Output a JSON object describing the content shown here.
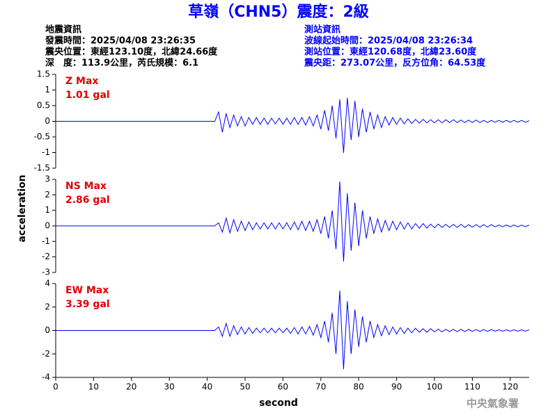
{
  "title": "草嶺（CHN5）震度：2級",
  "info_left": [
    "地震資訊",
    "發震時間：2025/04/08 23:26:35",
    "震央位置：東經123.10度，北緯24.66度",
    "深　度：113.9公里，芮氏規模：6.1"
  ],
  "info_right": [
    "測站資訊",
    "波線起始時間：2025/04/08 23:26:34",
    "測站位置：東經120.68度，北緯23.60度",
    "震央距：273.07公里，反方位角：64.53度"
  ],
  "ylabel": "acceleration",
  "xlabel": "second",
  "footer": "中央氣象署",
  "chart_data": [
    {
      "type": "line",
      "annotations": [
        "Z Max",
        "1.01 gal"
      ],
      "xlim": [
        0,
        125
      ],
      "ylim": [
        -1.5,
        1.5
      ],
      "yticks": [
        -1.5,
        -1,
        -0.5,
        0,
        0.5,
        1,
        1.5
      ],
      "x": [
        0,
        42,
        43,
        44,
        45,
        46,
        47,
        48,
        49,
        50,
        51,
        52,
        53,
        54,
        55,
        56,
        57,
        58,
        59,
        60,
        61,
        62,
        63,
        64,
        65,
        66,
        67,
        68,
        69,
        70,
        71,
        72,
        73,
        74,
        75,
        76,
        77,
        78,
        79,
        80,
        81,
        82,
        83,
        84,
        85,
        86,
        87,
        88,
        89,
        90,
        91,
        92,
        93,
        94,
        95,
        96,
        97,
        98,
        99,
        100,
        101,
        102,
        103,
        104,
        105,
        106,
        107,
        108,
        109,
        110,
        111,
        112,
        113,
        114,
        115,
        116,
        117,
        118,
        119,
        120,
        121,
        122,
        123,
        124,
        125
      ],
      "series": [
        {
          "color": "#0000ff",
          "values": [
            0,
            0,
            0.3,
            -0.35,
            0.25,
            -0.2,
            0.2,
            -0.15,
            0.15,
            -0.15,
            0.12,
            -0.1,
            0.12,
            -0.1,
            0.1,
            -0.1,
            0.1,
            -0.08,
            0.1,
            -0.1,
            0.1,
            -0.1,
            0.12,
            -0.1,
            0.12,
            -0.12,
            0.15,
            -0.15,
            0.2,
            -0.25,
            0.35,
            -0.3,
            0.5,
            -0.55,
            0.7,
            -1.01,
            0.75,
            -0.6,
            0.65,
            -0.5,
            0.4,
            -0.35,
            0.3,
            -0.25,
            0.2,
            -0.2,
            0.15,
            -0.12,
            0.12,
            -0.1,
            0.1,
            -0.08,
            0.08,
            -0.07,
            0.06,
            -0.06,
            0.06,
            -0.05,
            0.05,
            -0.05,
            0.05,
            -0.05,
            0.05,
            -0.04,
            0.05,
            -0.04,
            0.04,
            -0.04,
            0.04,
            -0.04,
            0.04,
            -0.04,
            0.03,
            -0.04,
            0.03,
            -0.03,
            0.03,
            -0.03,
            0.03,
            -0.03,
            0.03,
            -0.03,
            0.03,
            -0.03,
            0.02
          ]
        }
      ]
    },
    {
      "type": "line",
      "annotations": [
        "NS Max",
        "2.86 gal"
      ],
      "xlim": [
        0,
        125
      ],
      "ylim": [
        -3,
        3
      ],
      "yticks": [
        -3,
        -2,
        -1,
        0,
        1,
        2,
        3
      ],
      "x": [
        0,
        42,
        43,
        44,
        45,
        46,
        47,
        48,
        49,
        50,
        51,
        52,
        53,
        54,
        55,
        56,
        57,
        58,
        59,
        60,
        61,
        62,
        63,
        64,
        65,
        66,
        67,
        68,
        69,
        70,
        71,
        72,
        73,
        74,
        75,
        76,
        77,
        78,
        79,
        80,
        81,
        82,
        83,
        84,
        85,
        86,
        87,
        88,
        89,
        90,
        91,
        92,
        93,
        94,
        95,
        96,
        97,
        98,
        99,
        100,
        101,
        102,
        103,
        104,
        105,
        106,
        107,
        108,
        109,
        110,
        111,
        112,
        113,
        114,
        115,
        116,
        117,
        118,
        119,
        120,
        121,
        122,
        123,
        124,
        125
      ],
      "series": [
        {
          "color": "#0000ff",
          "values": [
            0,
            0,
            0.2,
            -0.4,
            0.5,
            -0.45,
            0.4,
            -0.35,
            0.3,
            -0.3,
            0.25,
            -0.25,
            0.2,
            -0.2,
            0.2,
            -0.2,
            0.2,
            -0.2,
            0.2,
            -0.2,
            0.2,
            -0.25,
            0.25,
            -0.25,
            0.3,
            -0.3,
            0.3,
            -0.35,
            0.4,
            -0.5,
            0.6,
            -0.8,
            1.0,
            -1.5,
            2.86,
            -2.3,
            2.1,
            -1.6,
            1.5,
            -1.3,
            1.0,
            -0.8,
            0.6,
            -0.5,
            0.45,
            -0.4,
            0.35,
            -0.3,
            0.3,
            -0.25,
            0.25,
            -0.2,
            0.2,
            -0.2,
            0.15,
            -0.15,
            0.15,
            -0.15,
            0.12,
            -0.12,
            0.12,
            -0.1,
            0.1,
            -0.1,
            0.1,
            -0.1,
            0.1,
            -0.1,
            0.08,
            -0.08,
            0.08,
            -0.08,
            0.08,
            -0.08,
            0.08,
            -0.06,
            0.06,
            -0.06,
            0.06,
            -0.06,
            0.06,
            -0.06,
            0.05,
            -0.05,
            0.05
          ]
        }
      ]
    },
    {
      "type": "line",
      "annotations": [
        "EW Max",
        "3.39 gal"
      ],
      "xlim": [
        0,
        125
      ],
      "ylim": [
        -4,
        4
      ],
      "yticks": [
        -4,
        -2,
        0,
        2,
        4
      ],
      "xticks": [
        0,
        10,
        20,
        30,
        40,
        50,
        60,
        70,
        80,
        90,
        100,
        110,
        120
      ],
      "x": [
        0,
        42,
        43,
        44,
        45,
        46,
        47,
        48,
        49,
        50,
        51,
        52,
        53,
        54,
        55,
        56,
        57,
        58,
        59,
        60,
        61,
        62,
        63,
        64,
        65,
        66,
        67,
        68,
        69,
        70,
        71,
        72,
        73,
        74,
        75,
        76,
        77,
        78,
        79,
        80,
        81,
        82,
        83,
        84,
        85,
        86,
        87,
        88,
        89,
        90,
        91,
        92,
        93,
        94,
        95,
        96,
        97,
        98,
        99,
        100,
        101,
        102,
        103,
        104,
        105,
        106,
        107,
        108,
        109,
        110,
        111,
        112,
        113,
        114,
        115,
        116,
        117,
        118,
        119,
        120,
        121,
        122,
        123,
        124,
        125
      ],
      "series": [
        {
          "color": "#0000ff",
          "values": [
            0,
            0,
            0.3,
            -0.5,
            0.6,
            -0.5,
            0.4,
            -0.35,
            0.3,
            -0.3,
            0.25,
            -0.25,
            0.2,
            -0.2,
            0.2,
            -0.2,
            0.2,
            -0.2,
            0.2,
            -0.2,
            0.2,
            -0.25,
            0.25,
            -0.3,
            0.3,
            -0.3,
            0.35,
            -0.4,
            0.5,
            -0.6,
            0.8,
            -1.0,
            1.5,
            -2.0,
            3.39,
            -3.3,
            2.5,
            -2.0,
            1.8,
            -1.4,
            1.2,
            -1.0,
            0.8,
            -0.6,
            0.5,
            -0.45,
            0.4,
            -0.35,
            0.3,
            -0.3,
            0.25,
            -0.25,
            0.2,
            -0.2,
            0.2,
            -0.15,
            0.15,
            -0.15,
            0.15,
            -0.12,
            0.12,
            -0.12,
            0.1,
            -0.1,
            0.1,
            -0.1,
            0.1,
            -0.1,
            0.1,
            -0.08,
            0.08,
            -0.08,
            0.08,
            -0.08,
            0.08,
            -0.06,
            0.06,
            -0.06,
            0.06,
            -0.06,
            0.06,
            -0.06,
            0.06,
            -0.05,
            0.05
          ]
        }
      ]
    }
  ]
}
